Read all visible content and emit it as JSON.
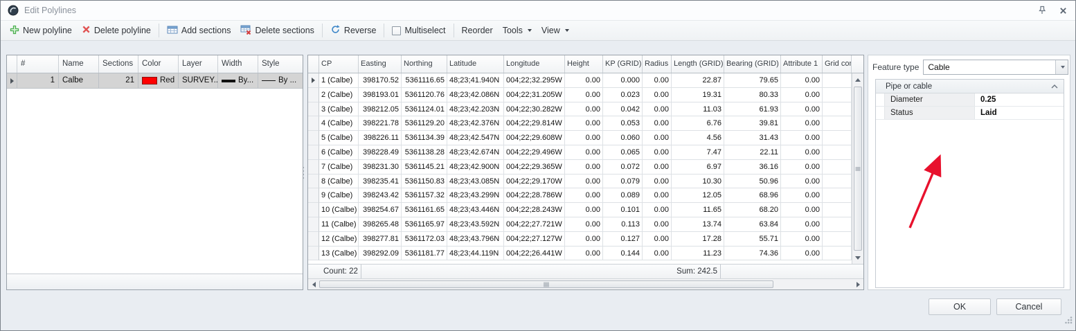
{
  "window": {
    "title": "Edit Polylines",
    "ok_label": "OK",
    "cancel_label": "Cancel"
  },
  "toolbar": {
    "new_polyline": "New polyline",
    "delete_polyline": "Delete polyline",
    "add_sections": "Add sections",
    "delete_sections": "Delete sections",
    "reverse": "Reverse",
    "multiselect": "Multiselect",
    "reorder": "Reorder",
    "tools": "Tools",
    "view": "View"
  },
  "polylines_table": {
    "columns": [
      "#",
      "Name",
      "Sections",
      "Color",
      "Layer",
      "Width",
      "Style"
    ],
    "row": {
      "num": "1",
      "name": "Calbe",
      "sections": "21",
      "color_name": "Red",
      "color_hex": "#ff0000",
      "layer": "SURVEY...",
      "width": "By...",
      "style": "By ..."
    }
  },
  "points_table": {
    "columns": [
      "CP",
      "Easting",
      "Northing",
      "Latitude",
      "Longitude",
      "Height",
      "KP (GRID)",
      "Radius",
      "Length (GRID)",
      "Bearing (GRID)",
      "Attribute 1",
      "Grid conver"
    ],
    "rows": [
      [
        "1 (Calbe)",
        "398170.52",
        "5361116.65",
        "48;23;41.940N",
        "004;22;32.295W",
        "0.00",
        "0.000",
        "0.00",
        "22.87",
        "79.65",
        "0.00",
        ""
      ],
      [
        "2 (Calbe)",
        "398193.01",
        "5361120.76",
        "48;23;42.086N",
        "004;22;31.205W",
        "0.00",
        "0.023",
        "0.00",
        "19.31",
        "80.33",
        "0.00",
        ""
      ],
      [
        "3 (Calbe)",
        "398212.05",
        "5361124.01",
        "48;23;42.203N",
        "004;22;30.282W",
        "0.00",
        "0.042",
        "0.00",
        "11.03",
        "61.93",
        "0.00",
        ""
      ],
      [
        "4 (Calbe)",
        "398221.78",
        "5361129.20",
        "48;23;42.376N",
        "004;22;29.814W",
        "0.00",
        "0.053",
        "0.00",
        "6.76",
        "39.81",
        "0.00",
        ""
      ],
      [
        "5 (Calbe)",
        "398226.11",
        "5361134.39",
        "48;23;42.547N",
        "004;22;29.608W",
        "0.00",
        "0.060",
        "0.00",
        "4.56",
        "31.43",
        "0.00",
        ""
      ],
      [
        "6 (Calbe)",
        "398228.49",
        "5361138.28",
        "48;23;42.674N",
        "004;22;29.496W",
        "0.00",
        "0.065",
        "0.00",
        "7.47",
        "22.11",
        "0.00",
        ""
      ],
      [
        "7 (Calbe)",
        "398231.30",
        "5361145.21",
        "48;23;42.900N",
        "004;22;29.365W",
        "0.00",
        "0.072",
        "0.00",
        "6.97",
        "36.16",
        "0.00",
        ""
      ],
      [
        "8 (Calbe)",
        "398235.41",
        "5361150.83",
        "48;23;43.085N",
        "004;22;29.170W",
        "0.00",
        "0.079",
        "0.00",
        "10.30",
        "50.96",
        "0.00",
        ""
      ],
      [
        "9 (Calbe)",
        "398243.42",
        "5361157.32",
        "48;23;43.299N",
        "004;22;28.786W",
        "0.00",
        "0.089",
        "0.00",
        "12.05",
        "68.96",
        "0.00",
        ""
      ],
      [
        "10 (Calbe)",
        "398254.67",
        "5361161.65",
        "48;23;43.446N",
        "004;22;28.243W",
        "0.00",
        "0.101",
        "0.00",
        "11.65",
        "68.20",
        "0.00",
        ""
      ],
      [
        "11 (Calbe)",
        "398265.48",
        "5361165.97",
        "48;23;43.592N",
        "004;22;27.721W",
        "0.00",
        "0.113",
        "0.00",
        "13.74",
        "63.84",
        "0.00",
        ""
      ],
      [
        "12 (Calbe)",
        "398277.81",
        "5361172.03",
        "48;23;43.796N",
        "004;22;27.127W",
        "0.00",
        "0.127",
        "0.00",
        "17.28",
        "55.71",
        "0.00",
        ""
      ],
      [
        "13 (Calbe)",
        "398292.09",
        "5361181.77",
        "48;23;44.119N",
        "004;22;26.441W",
        "0.00",
        "0.144",
        "0.00",
        "11.23",
        "74.36",
        "0.00",
        ""
      ]
    ],
    "count": "Count: 22",
    "sum": "Sum: 242.5"
  },
  "feature_panel": {
    "label": "Feature type",
    "value": "Cable",
    "group": "Pipe or cable",
    "properties": [
      {
        "name": "Diameter",
        "value": "0.25"
      },
      {
        "name": "Status",
        "value": "Laid"
      }
    ],
    "annotation_arrow_color": "#e8112d"
  }
}
